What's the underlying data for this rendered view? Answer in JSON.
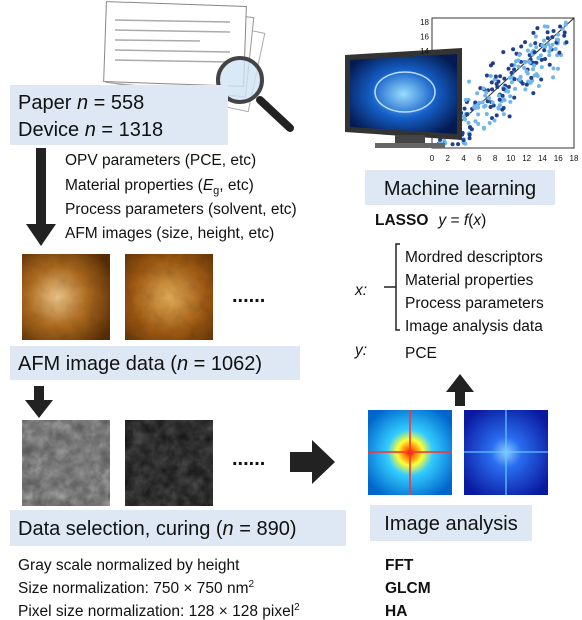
{
  "sources": [
    {
      "label": "Paper ",
      "var": "n",
      "value": " = 558"
    },
    {
      "label": "Device ",
      "var": "n",
      "value": " = 1318"
    }
  ],
  "collected": {
    "opv": "OPV parameters (PCE, etc)",
    "material": {
      "before": "Material properties (",
      "symbol": "E",
      "subscript": "g",
      "after": ", etc)"
    },
    "process": "Process parameters (solvent, etc)",
    "afm": "AFM images (size, height, etc)"
  },
  "ellipsis": "......",
  "afm_box": {
    "label": "AFM image data (",
    "var": "n",
    "value": " = 1062)"
  },
  "selection_box": {
    "label": "Data selection, curing (",
    "var": "n",
    "value": " = 890)"
  },
  "normalization": {
    "gray": "Gray scale normalized by height",
    "size": {
      "text": "Size normalization: 750 × 750 nm",
      "exponent": "2"
    },
    "pixel": {
      "text": "Pixel size normalization: 128 × 128 pixel",
      "exponent": "2"
    }
  },
  "plot": {
    "xticks": [
      "0",
      "2",
      "4",
      "6",
      "8",
      "10",
      "12",
      "14",
      "16",
      "18"
    ],
    "yticks": [
      "14",
      "16",
      "18"
    ]
  },
  "ml": {
    "title": "Machine learning",
    "model": "LASSO",
    "equation": [
      "y",
      " = ",
      "f",
      "(",
      "x",
      ")"
    ]
  },
  "features": {
    "x_label": "x:",
    "x_items": [
      "Mordred descriptors",
      "Material properties",
      "Process parameters",
      "Image analysis data"
    ],
    "y_label": "y:",
    "y_item": "PCE"
  },
  "analysis": {
    "title": "Image analysis",
    "methods": [
      "FFT",
      "GLCM",
      "HA"
    ]
  }
}
